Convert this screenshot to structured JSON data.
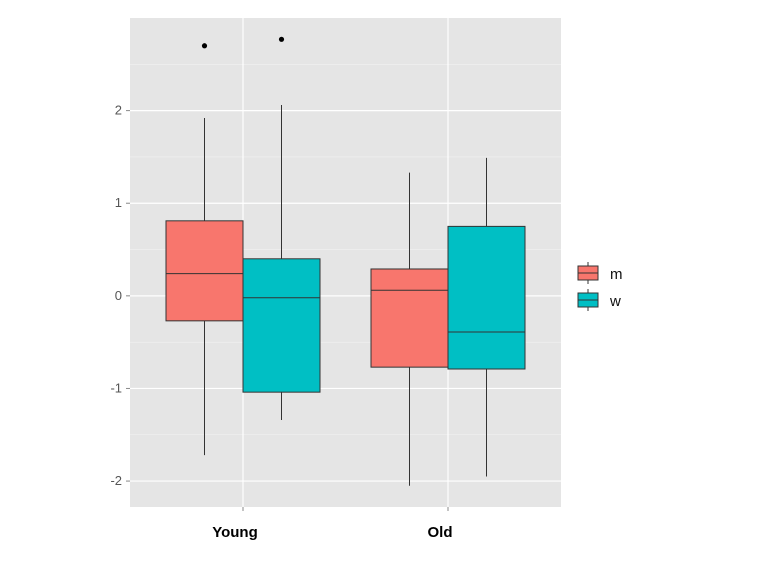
{
  "chart_data": {
    "type": "boxplot",
    "title": "",
    "xlabel": "",
    "ylabel": "",
    "categories": [
      "Young",
      "Old"
    ],
    "ylim": [
      -2.28,
      3.0
    ],
    "yticks": [
      -2,
      -1,
      0,
      1,
      2
    ],
    "ytick_labels": [
      "-2",
      "-1",
      "0",
      "1",
      "2"
    ],
    "grid": true,
    "legend_position": "right",
    "colors": {
      "panel_bg": "#e5e5e5",
      "grid_major": "#ffffff",
      "grid_minor": "#f2f2f2",
      "axis_text": "#555555",
      "outline": "#333333"
    },
    "series": [
      {
        "name": "m",
        "color": "#f8766d",
        "boxes": [
          {
            "category": "Young",
            "whisker_low": -1.72,
            "q1": -0.27,
            "median": 0.24,
            "q3": 0.81,
            "whisker_high": 1.92,
            "outliers": [
              2.7
            ]
          },
          {
            "category": "Old",
            "whisker_low": -2.05,
            "q1": -0.77,
            "median": 0.06,
            "q3": 0.29,
            "whisker_high": 1.33,
            "outliers": []
          }
        ]
      },
      {
        "name": "w",
        "color": "#00bfc4",
        "boxes": [
          {
            "category": "Young",
            "whisker_low": -1.34,
            "q1": -1.04,
            "median": -0.02,
            "q3": 0.4,
            "whisker_high": 2.06,
            "outliers": [
              2.77
            ]
          },
          {
            "category": "Old",
            "whisker_low": -1.95,
            "q1": -0.79,
            "median": -0.39,
            "q3": 0.75,
            "whisker_high": 1.49,
            "outliers": []
          }
        ]
      }
    ]
  }
}
